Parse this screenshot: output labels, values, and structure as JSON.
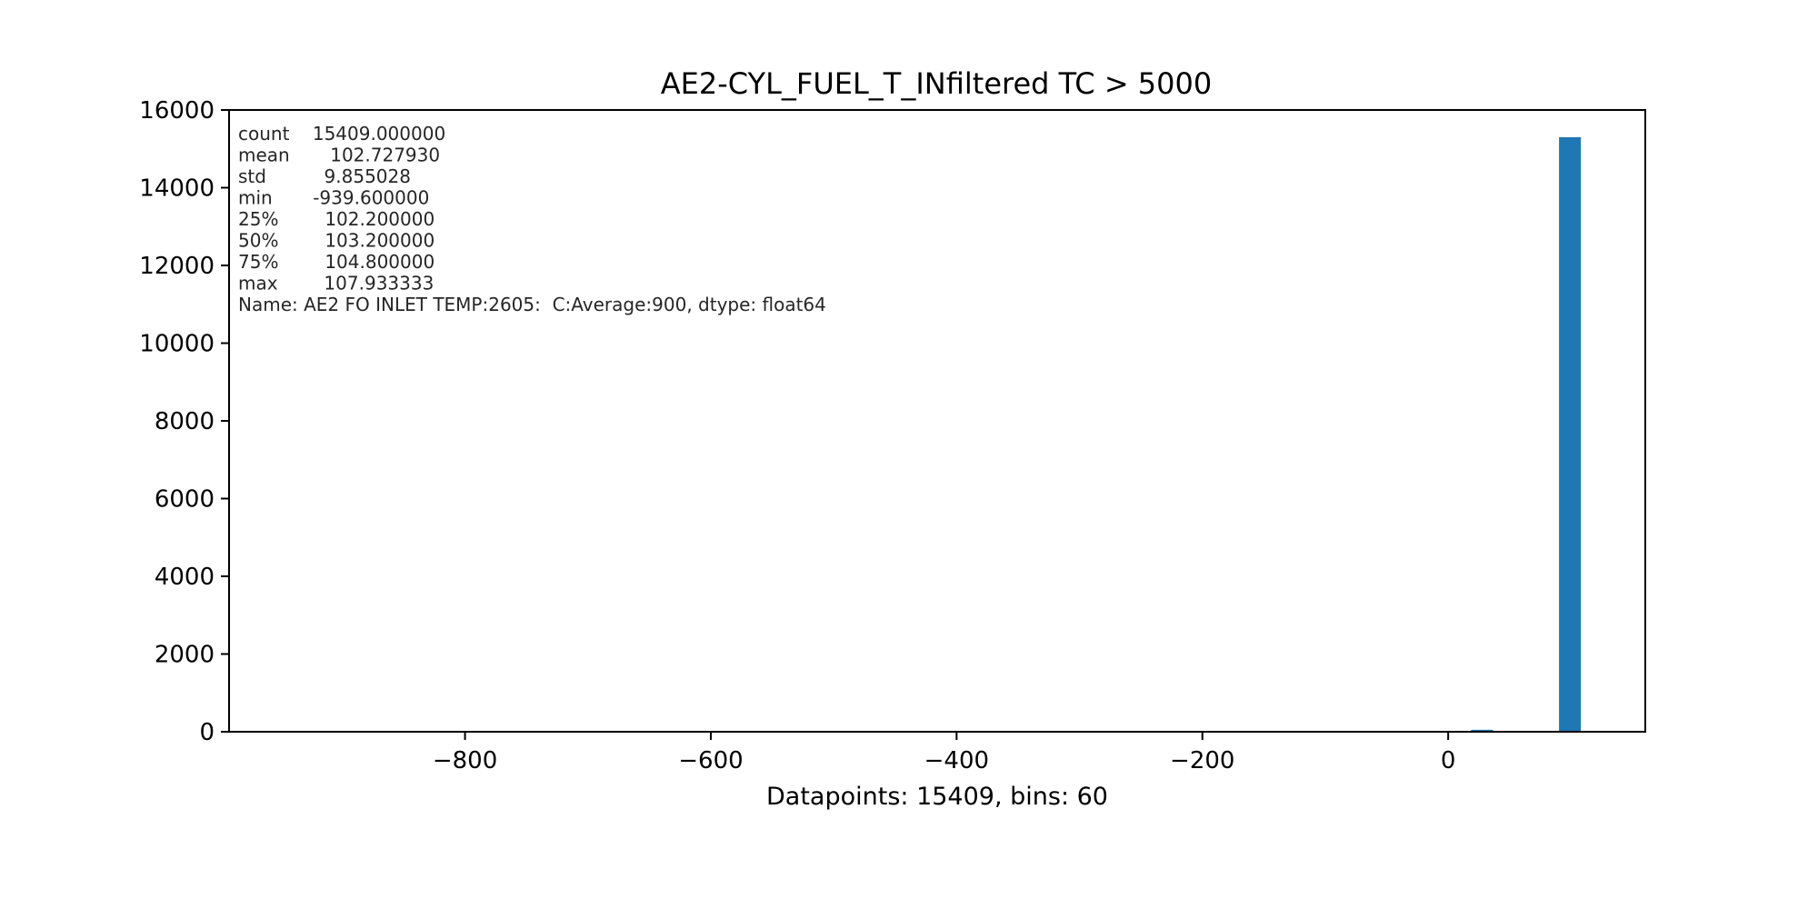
{
  "chart_data": {
    "type": "bar",
    "title": "AE2-CYL_FUEL_T_INfiltered TC > 5000",
    "xlabel": "Datapoints: 15409, bins: 60",
    "ylabel": "",
    "xlim": [
      -992.0,
      160.4
    ],
    "ylim": [
      0,
      16000
    ],
    "bin_width": 17.8922,
    "bins": [
      {
        "x0": 18.6,
        "x1": 36.5,
        "count": 50
      },
      {
        "x0": 90.2,
        "x1": 108.0,
        "count": 15300
      }
    ],
    "x_ticks": [
      {
        "value": -800,
        "label": "−800"
      },
      {
        "value": -600,
        "label": "−600"
      },
      {
        "value": -400,
        "label": "−400"
      },
      {
        "value": -200,
        "label": "−200"
      },
      {
        "value": 0,
        "label": "0"
      }
    ],
    "y_ticks": [
      {
        "value": 0,
        "label": "0"
      },
      {
        "value": 2000,
        "label": "2000"
      },
      {
        "value": 4000,
        "label": "4000"
      },
      {
        "value": 6000,
        "label": "6000"
      },
      {
        "value": 8000,
        "label": "8000"
      },
      {
        "value": 10000,
        "label": "10000"
      },
      {
        "value": 12000,
        "label": "12000"
      },
      {
        "value": 14000,
        "label": "14000"
      },
      {
        "value": 16000,
        "label": "16000"
      }
    ],
    "bar_color": "#1f77b4",
    "grid": false,
    "legend": false,
    "stats_lines": [
      "count    15409.000000",
      "mean       102.727930",
      "std          9.855028",
      "min       -939.600000",
      "25%        102.200000",
      "50%        103.200000",
      "75%        104.800000",
      "max        107.933333",
      "Name: AE2 FO INLET TEMP:2605:  C:Average:900, dtype: float64"
    ]
  }
}
